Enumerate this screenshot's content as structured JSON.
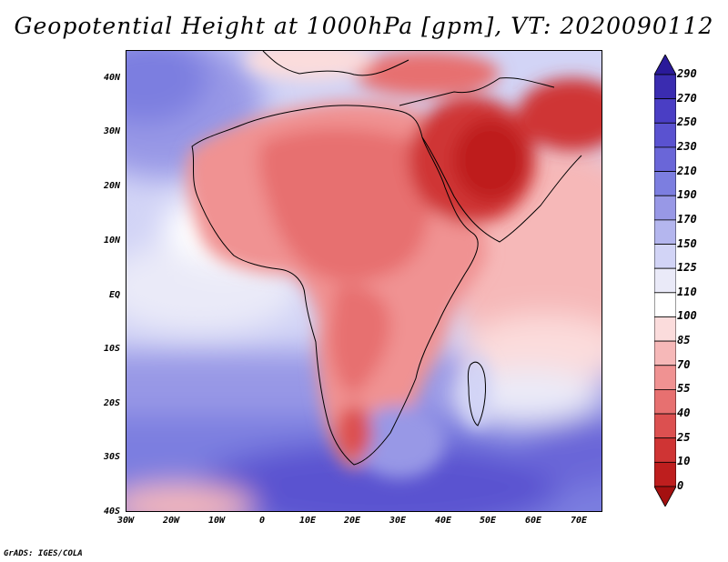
{
  "title": "Geopotential Height at 1000hPa [gpm], VT: 2020090112",
  "credit": "GrADS: IGES/COLA",
  "map": {
    "lat_labels": [
      "40N",
      "30N",
      "20N",
      "10N",
      "EQ",
      "10S",
      "20S",
      "30S",
      "40S"
    ],
    "lon_labels": [
      "30W",
      "20W",
      "10W",
      "0",
      "10E",
      "20E",
      "30E",
      "40E",
      "50E",
      "60E",
      "70E"
    ],
    "extent": {
      "lon": [
        -30,
        75
      ],
      "lat": [
        -40,
        45
      ]
    }
  },
  "colorbar": {
    "labels": [
      "290",
      "270",
      "250",
      "230",
      "210",
      "190",
      "170",
      "150",
      "125",
      "110",
      "100",
      "85",
      "70",
      "55",
      "40",
      "25",
      "10",
      "0"
    ],
    "colors": [
      "#2a1a9a",
      "#3a2cb0",
      "#4a3ec4",
      "#5a52d0",
      "#6a66d8",
      "#7c7ee0",
      "#9898e6",
      "#b4b6ee",
      "#d2d4f6",
      "#eaeaf8",
      "#ffffff",
      "#fbdcdc",
      "#f6b8b8",
      "#f09292",
      "#e77070",
      "#dc5050",
      "#cf3434",
      "#be1e1e",
      "#a41010"
    ]
  }
}
